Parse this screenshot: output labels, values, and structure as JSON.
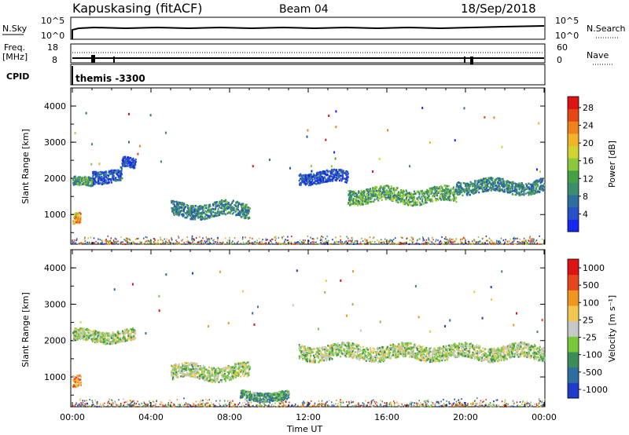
{
  "header": {
    "station": "Kapuskasing (fitACF)",
    "beam": "Beam 04",
    "date": "18/Sep/2018"
  },
  "strip_panels": {
    "nsky": {
      "label": "N.Sky",
      "ticks": [
        "10^5",
        "10^0"
      ]
    },
    "nsearch": {
      "label": "N.Search",
      "ticks": [
        "10^5",
        "10^0"
      ]
    },
    "freq": {
      "label_top": "Freq.",
      "label_unit": "[MHz]",
      "ticks": [
        "18",
        "8"
      ]
    },
    "nave": {
      "label": "Nave",
      "ticks": [
        "60",
        "0"
      ]
    },
    "cpid": {
      "label": "CPID",
      "value": "themis -3300"
    }
  },
  "x_axis": {
    "label": "Time UT",
    "ticks": [
      "00:00",
      "04:00",
      "08:00",
      "12:00",
      "16:00",
      "20:00",
      "00:00"
    ]
  },
  "chart_data": [
    {
      "type": "heatmap",
      "name": "power",
      "ylabel": "Slant Range [km]",
      "y_ticks": [
        1000,
        2000,
        3000,
        4000
      ],
      "ylim": [
        180,
        4500
      ],
      "xlim_hours": [
        0,
        24
      ],
      "colorbar": {
        "label": "Power [dB]",
        "ticks": [
          "4",
          "8",
          "12",
          "16",
          "20",
          "24",
          "28"
        ],
        "colors": [
          "#1428f0",
          "#2850c8",
          "#2e6e9e",
          "#3c8c6e",
          "#46a046",
          "#8cc83c",
          "#d2d232",
          "#f0b428",
          "#f0821e",
          "#e64614",
          "#dc1414"
        ]
      },
      "features": [
        {
          "t_start": 0.0,
          "t_end": 0.4,
          "range": 900,
          "thickness": 150,
          "level": 0.7
        },
        {
          "t_start": 0.0,
          "t_end": 1.0,
          "range": 1920,
          "thickness": 120,
          "level": 0.35
        },
        {
          "t_start": 1.0,
          "t_end": 2.5,
          "range": 2100,
          "thickness": 180,
          "level": 0.15
        },
        {
          "t_start": 2.5,
          "t_end": 3.2,
          "range": 2450,
          "thickness": 140,
          "level": 0.1
        },
        {
          "t_start": 5.0,
          "t_end": 9.0,
          "range": 1150,
          "thickness": 200,
          "level": 0.3
        },
        {
          "t_start": 11.5,
          "t_end": 14.0,
          "range": 2050,
          "thickness": 160,
          "level": 0.12
        },
        {
          "t_start": 14.0,
          "t_end": 19.5,
          "range": 1550,
          "thickness": 200,
          "level": 0.4
        },
        {
          "t_start": 19.5,
          "t_end": 24.0,
          "range": 1800,
          "thickness": 180,
          "level": 0.3
        }
      ]
    },
    {
      "type": "heatmap",
      "name": "velocity",
      "ylabel": "Slant Range [km]",
      "y_ticks": [
        1000,
        2000,
        3000,
        4000
      ],
      "ylim": [
        180,
        4500
      ],
      "xlim_hours": [
        0,
        24
      ],
      "colorbar": {
        "label": "Velocity [m s⁻¹]",
        "ticks": [
          "1000",
          "500",
          "100",
          "25",
          "-25",
          "-100",
          "-500",
          "-1000"
        ],
        "colors": [
          "#1e3cc8",
          "#2e6e9e",
          "#3c8c5a",
          "#78c83c",
          "#c8c8c8",
          "#f0c850",
          "#f0961e",
          "#e6461e",
          "#dc1414"
        ]
      },
      "features": [
        {
          "t_start": 0.0,
          "t_end": 0.4,
          "range": 880,
          "thickness": 160,
          "level": 0.7
        },
        {
          "t_start": 0.0,
          "t_end": 3.2,
          "range": 2150,
          "thickness": 160,
          "level": 0.45
        },
        {
          "t_start": 5.0,
          "t_end": 9.0,
          "range": 1150,
          "thickness": 200,
          "level": 0.45
        },
        {
          "t_start": 8.5,
          "t_end": 11.0,
          "range": 500,
          "thickness": 120,
          "level": 0.3
        },
        {
          "t_start": 11.5,
          "t_end": 24.0,
          "range": 1700,
          "thickness": 200,
          "level": 0.45
        }
      ]
    }
  ]
}
